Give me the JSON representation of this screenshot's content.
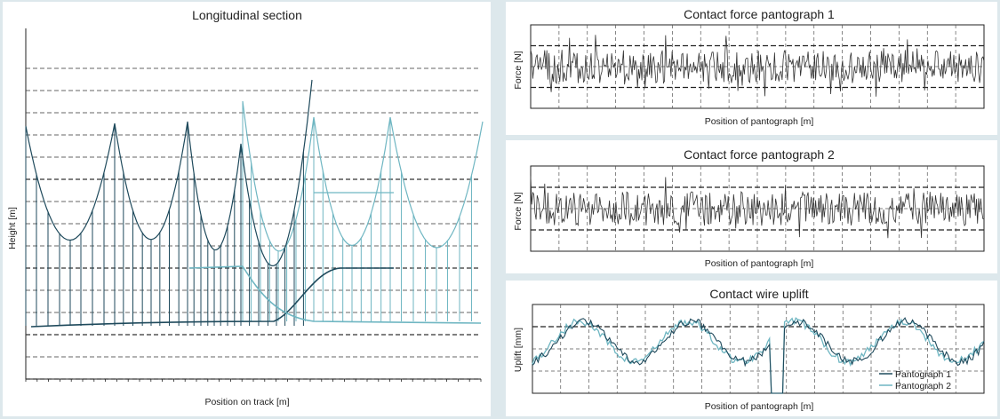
{
  "chart_data": [
    {
      "id": "longitudinal",
      "type": "line",
      "title": "Longitudinal section",
      "xlabel": "Position on track [m]",
      "ylabel": "Height [m]",
      "grid": true,
      "series": [
        {
          "color": "#1f4a5c",
          "values": [
            1.0,
            0.62,
            0.92,
            0.55,
            0.95,
            0.5,
            0.88,
            0.58,
            0.97,
            0.82
          ]
        },
        {
          "color": "#6fb6c2",
          "values": [
            0.6,
            0.85,
            0.6,
            0.84,
            0.58,
            0.55,
            0.78,
            0.8
          ]
        }
      ]
    },
    {
      "id": "force1",
      "type": "line",
      "title": "Contact force pantograph 1",
      "xlabel": "Position of pantograph [m]",
      "ylabel": "Force [N]",
      "grid": true,
      "series": [
        {
          "color": "#333333"
        }
      ]
    },
    {
      "id": "force2",
      "type": "line",
      "title": "Contact force pantograph 2",
      "xlabel": "Position of pantograph [m]",
      "ylabel": "Force [N]",
      "grid": true,
      "series": [
        {
          "color": "#333333"
        }
      ]
    },
    {
      "id": "uplift",
      "type": "line",
      "title": "Contact wire uplift",
      "xlabel": "Position of pantograph [m]",
      "ylabel": "Uplift [mm]",
      "grid": true,
      "legend": "bottom-right",
      "series": [
        {
          "name": "Pantograph 1",
          "color": "#1f4a5c"
        },
        {
          "name": "Pantograph 2",
          "color": "#6fb6c2"
        }
      ]
    }
  ]
}
